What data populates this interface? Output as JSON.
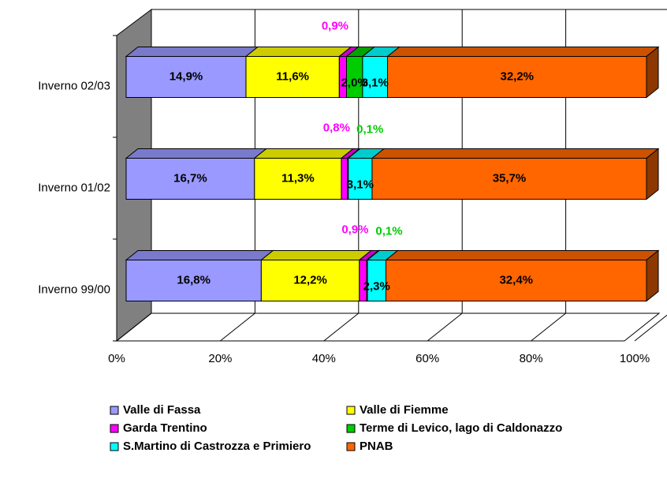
{
  "chart_data": {
    "type": "bar3d_stacked_percent_horizontal",
    "categories": [
      "Inverno 02/03",
      "Inverno 01/02",
      "Inverno 99/00"
    ],
    "series": [
      {
        "name": "Valle di Fassa",
        "color": "#9999ff",
        "values": [
          14.9,
          16.7,
          16.8
        ],
        "value_labels": [
          "14,9%",
          "16,7%",
          "16,8%"
        ]
      },
      {
        "name": "Valle di Fiemme",
        "color": "#ffff00",
        "values": [
          11.6,
          11.3,
          12.2
        ],
        "value_labels": [
          "11,6%",
          "11,3%",
          "12,2%"
        ]
      },
      {
        "name": "Garda Trentino",
        "color": "#ff00ff",
        "values": [
          0.9,
          0.8,
          0.9
        ],
        "value_labels": [
          "0,9%",
          "0,8%",
          "0,9%"
        ]
      },
      {
        "name": "Terme di Levico, lago di Caldonazzo",
        "color": "#00cc00",
        "values": [
          2.0,
          0.1,
          0.1
        ],
        "value_labels": [
          "2,0%",
          "0,1%",
          "0,1%"
        ]
      },
      {
        "name": "S.Martino di Castrozza e Primiero",
        "color": "#00ffff",
        "values": [
          3.1,
          3.1,
          2.3
        ],
        "value_labels": [
          "3,1%",
          "3,1%",
          "2,3%"
        ]
      },
      {
        "name": "PNAB",
        "color": "#ff6600",
        "values": [
          32.2,
          35.7,
          32.4
        ],
        "value_labels": [
          "32,2%",
          "35,7%",
          "32,4%"
        ]
      }
    ],
    "xlim": [
      0,
      100
    ],
    "xticks": [
      {
        "value": 0,
        "label": "0%"
      },
      {
        "value": 20,
        "label": "20%"
      },
      {
        "value": 40,
        "label": "40%"
      },
      {
        "value": 60,
        "label": "60%"
      },
      {
        "value": 80,
        "label": "80%"
      },
      {
        "value": 100,
        "label": "100%"
      }
    ],
    "grid": true,
    "legend": "bottom"
  }
}
